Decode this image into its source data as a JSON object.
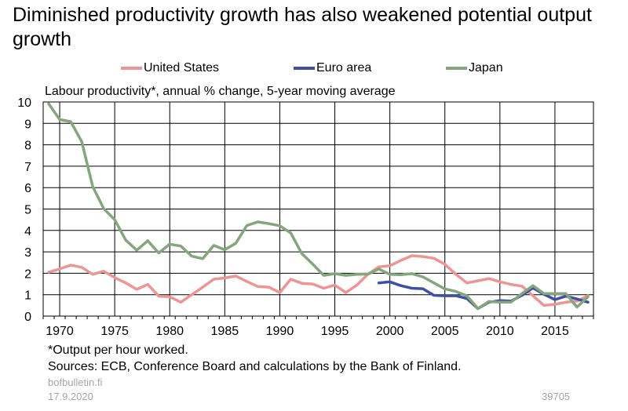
{
  "title": "Diminished productivity growth has also weakened potential output growth",
  "legend": [
    {
      "label": "United States",
      "color": "#ee9494"
    },
    {
      "label": "Euro area",
      "color": "#3f4fa6"
    },
    {
      "label": "Japan",
      "color": "#84a67c"
    }
  ],
  "unit_label": "Labour productivity*, annual % change, 5-year moving average",
  "footnote": "*Output per hour worked.",
  "sources": "Sources: ECB, Conference Board and calculations by the Bank of Finland.",
  "brand": "bofbulletin.fi",
  "date": "17.9.2020",
  "chart_code": "39705",
  "chart_data": {
    "type": "line",
    "title": "Diminished productivity growth has also weakened potential output growth",
    "ylabel": "Labour productivity*, annual % change, 5-year moving average",
    "xlim": [
      1969,
      2018
    ],
    "ylim": [
      0,
      10
    ],
    "x_ticks": [
      1970,
      1975,
      1980,
      1985,
      1990,
      1995,
      2000,
      2005,
      2010,
      2015
    ],
    "y_ticks": [
      0,
      1,
      2,
      3,
      4,
      5,
      6,
      7,
      8,
      9,
      10
    ],
    "grid": true,
    "legend_position": "top",
    "series": [
      {
        "name": "United States",
        "color": "#ee9494",
        "x": [
          1969,
          1970,
          1971,
          1972,
          1973,
          1974,
          1975,
          1976,
          1977,
          1978,
          1979,
          1980,
          1981,
          1982,
          1983,
          1984,
          1985,
          1986,
          1987,
          1988,
          1989,
          1990,
          1991,
          1992,
          1993,
          1994,
          1995,
          1996,
          1997,
          1998,
          1999,
          2000,
          2001,
          2002,
          2003,
          2004,
          2005,
          2006,
          2007,
          2008,
          2009,
          2010,
          2011,
          2012,
          2013,
          2014,
          2015,
          2016,
          2017,
          2018
        ],
        "y": [
          2.05,
          2.2,
          2.38,
          2.28,
          1.95,
          2.1,
          1.8,
          1.55,
          1.25,
          1.48,
          0.93,
          0.9,
          0.65,
          1.0,
          1.35,
          1.72,
          1.78,
          1.87,
          1.62,
          1.38,
          1.35,
          1.1,
          1.72,
          1.53,
          1.5,
          1.3,
          1.45,
          1.1,
          1.45,
          1.95,
          2.3,
          2.35,
          2.6,
          2.82,
          2.78,
          2.7,
          2.42,
          1.95,
          1.55,
          1.65,
          1.75,
          1.6,
          1.48,
          1.4,
          0.95,
          0.5,
          0.55,
          0.65,
          0.7,
          0.95
        ]
      },
      {
        "name": "Euro area",
        "color": "#3f4fa6",
        "x": [
          1999,
          2000,
          2001,
          2002,
          2003,
          2004,
          2005,
          2006,
          2007,
          2008,
          2009,
          2010,
          2011,
          2012,
          2013,
          2014,
          2015,
          2016,
          2017,
          2018
        ],
        "y": [
          1.55,
          1.6,
          1.42,
          1.3,
          1.28,
          0.97,
          0.95,
          0.95,
          0.82,
          0.35,
          0.65,
          0.72,
          0.7,
          0.97,
          1.32,
          1.02,
          0.77,
          0.93,
          0.8,
          0.65
        ]
      },
      {
        "name": "Japan",
        "color": "#84a67c",
        "x": [
          1969,
          1970,
          1971,
          1972,
          1973,
          1974,
          1975,
          1976,
          1977,
          1978,
          1979,
          1980,
          1981,
          1982,
          1983,
          1984,
          1985,
          1986,
          1987,
          1988,
          1989,
          1990,
          1991,
          1992,
          1993,
          1994,
          1995,
          1996,
          1997,
          1998,
          1999,
          2000,
          2001,
          2002,
          2003,
          2004,
          2005,
          2006,
          2007,
          2008,
          2009,
          2010,
          2011,
          2012,
          2013,
          2014,
          2015,
          2016,
          2017,
          2018
        ],
        "y": [
          9.92,
          9.18,
          9.08,
          8.15,
          6.05,
          5.02,
          4.5,
          3.55,
          3.08,
          3.52,
          2.95,
          3.36,
          3.27,
          2.8,
          2.68,
          3.3,
          3.1,
          3.4,
          4.23,
          4.4,
          4.32,
          4.22,
          3.88,
          2.92,
          2.42,
          1.9,
          1.98,
          1.9,
          1.95,
          1.96,
          2.2,
          1.95,
          1.93,
          1.98,
          1.83,
          1.55,
          1.27,
          1.15,
          0.95,
          0.35,
          0.68,
          0.65,
          0.65,
          1.05,
          1.42,
          1.05,
          1.05,
          1.05,
          0.42,
          0.9
        ]
      }
    ]
  }
}
